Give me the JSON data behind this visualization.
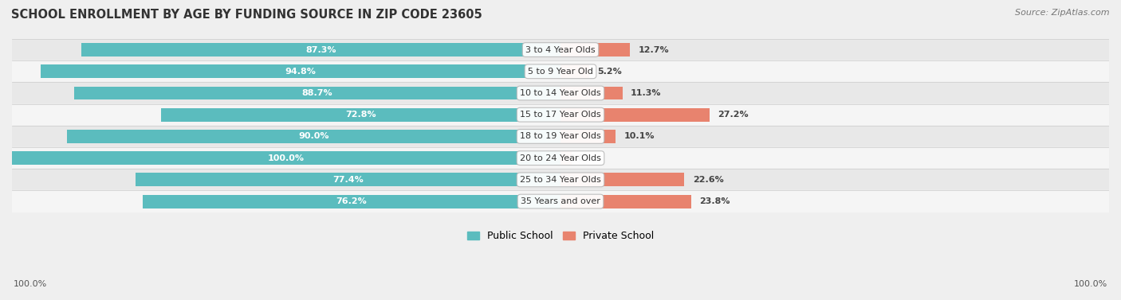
{
  "title": "SCHOOL ENROLLMENT BY AGE BY FUNDING SOURCE IN ZIP CODE 23605",
  "source": "Source: ZipAtlas.com",
  "categories": [
    "3 to 4 Year Olds",
    "5 to 9 Year Old",
    "10 to 14 Year Olds",
    "15 to 17 Year Olds",
    "18 to 19 Year Olds",
    "20 to 24 Year Olds",
    "25 to 34 Year Olds",
    "35 Years and over"
  ],
  "public_values": [
    87.3,
    94.8,
    88.7,
    72.8,
    90.0,
    100.0,
    77.4,
    76.2
  ],
  "private_values": [
    12.7,
    5.2,
    11.3,
    27.2,
    10.1,
    0.0,
    22.6,
    23.8
  ],
  "public_color": "#5bbcbe",
  "private_color": "#e8836e",
  "private_color_light": "#f0a898",
  "bg_color": "#efefef",
  "row_colors": [
    "#e8e8e8",
    "#f5f5f5"
  ],
  "axis_label_left": "100.0%",
  "axis_label_right": "100.0%",
  "bar_height": 0.62,
  "max_value": 100.0,
  "legend_labels": [
    "Public School",
    "Private School"
  ]
}
